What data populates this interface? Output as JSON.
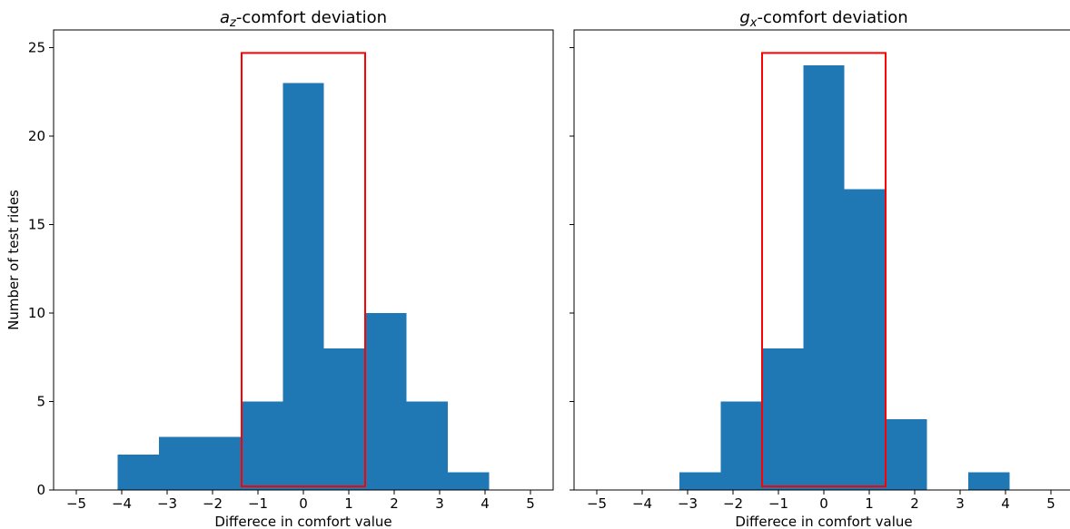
{
  "chart_data": [
    {
      "type": "bar",
      "title_main": "a",
      "title_sub": "z",
      "title_suffix": "-comfort deviation",
      "xlabel": "Differece in comfort value",
      "ylabel": "Number of test rides",
      "xlim": [
        -5.5,
        5.5
      ],
      "ylim": [
        0,
        26
      ],
      "xticks": [
        -5,
        -4,
        -3,
        -2,
        -1,
        0,
        1,
        2,
        3,
        4,
        5
      ],
      "xtick_labels": [
        "−5",
        "−4",
        "−3",
        "−2",
        "−1",
        "0",
        "1",
        "2",
        "3",
        "4",
        "5"
      ],
      "yticks": [
        0,
        5,
        10,
        15,
        20,
        25
      ],
      "ytick_labels": [
        "0",
        "5",
        "10",
        "15",
        "20",
        "25"
      ],
      "bin_edges": [
        -4.09,
        -3.18,
        -2.27,
        -1.36,
        -0.45,
        0.45,
        1.36,
        2.27,
        3.18,
        4.09
      ],
      "counts": [
        2,
        3,
        3,
        5,
        23,
        8,
        10,
        5,
        1
      ],
      "highlight_range": {
        "x": [
          -1.36,
          1.36
        ],
        "y": [
          0.2,
          24.7
        ]
      },
      "bar_color": "#1f77b4",
      "highlight_color": "#ff0000",
      "grid": false
    },
    {
      "type": "bar",
      "title_main": "g",
      "title_sub": "x",
      "title_suffix": "-comfort deviation",
      "xlabel": "Differece in comfort value",
      "ylabel": "",
      "xlim": [
        -5.5,
        5.5
      ],
      "ylim": [
        0,
        26
      ],
      "xticks": [
        -5,
        -4,
        -3,
        -2,
        -1,
        0,
        1,
        2,
        3,
        4,
        5
      ],
      "xtick_labels": [
        "−5",
        "−4",
        "−3",
        "−2",
        "−1",
        "0",
        "1",
        "2",
        "3",
        "4",
        "5"
      ],
      "yticks": [
        0,
        5,
        10,
        15,
        20,
        25
      ],
      "ytick_labels": [],
      "bin_edges": [
        -3.18,
        -2.27,
        -1.36,
        -0.45,
        0.45,
        1.36,
        2.27,
        3.18,
        4.09
      ],
      "counts": [
        1,
        5,
        8,
        24,
        17,
        4,
        0,
        1
      ],
      "highlight_range": {
        "x": [
          -1.36,
          1.36
        ],
        "y": [
          0.2,
          24.7
        ]
      },
      "bar_color": "#1f77b4",
      "highlight_color": "#ff0000",
      "grid": false
    }
  ]
}
